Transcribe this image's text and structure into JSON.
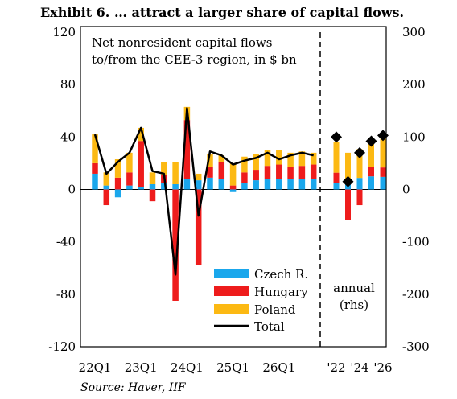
{
  "title": "Exhibit 6. … attract a larger share of capital flows.",
  "source": "Source: Haver, IIF",
  "colors": {
    "czech": "#1aa7ec",
    "hungary": "#ee1c1c",
    "poland": "#fcb913",
    "total": "#000000"
  },
  "chart_data": {
    "type": "bar",
    "annotation": "Net nonresident capital flows to/from the CEE-3 region, in $ bn",
    "annotation_lines": [
      "Net nonresident capital flows",
      "to/from the CEE-3 region, in $ bn"
    ],
    "right_panel_label_lines": [
      "annual",
      "(rhs)"
    ],
    "y_left": {
      "lim": [
        -120,
        120
      ],
      "ticks": [
        120,
        80,
        40,
        0,
        -40,
        -80,
        -120
      ]
    },
    "y_right": {
      "lim": [
        -300,
        300
      ],
      "ticks": [
        300,
        200,
        100,
        0,
        -100,
        -200,
        -300
      ]
    },
    "x_tick_labels": [
      "22Q1",
      "23Q1",
      "24Q1",
      "25Q1",
      "26Q1"
    ],
    "x_tick_label_quarter_index": [
      0,
      4,
      8,
      12,
      16
    ],
    "legend": [
      "Czech R.",
      "Hungary",
      "Poland",
      "Total"
    ],
    "legend_placement": "bottom-center",
    "quarterly": {
      "x": [
        "22Q1",
        "22Q2",
        "22Q3",
        "22Q4",
        "23Q1",
        "23Q2",
        "23Q3",
        "23Q4",
        "24Q1",
        "24Q2",
        "24Q3",
        "24Q4",
        "25Q1",
        "25Q2",
        "25Q3",
        "25Q4",
        "26Q1",
        "26Q2",
        "26Q3",
        "26Q4"
      ],
      "series": [
        {
          "name": "Czech R.",
          "values": [
            12,
            3,
            -6,
            3,
            2,
            4,
            5,
            4,
            8,
            7,
            9,
            8,
            -2,
            5,
            7,
            8,
            8,
            8,
            8,
            8
          ]
        },
        {
          "name": "Hungary",
          "values": [
            8,
            -12,
            9,
            10,
            35,
            -9,
            6,
            -85,
            45,
            -58,
            8,
            13,
            3,
            8,
            8,
            10,
            11,
            9,
            10,
            11
          ]
        },
        {
          "name": "Poland",
          "values": [
            22,
            10,
            14,
            15,
            10,
            9,
            10,
            17,
            10,
            5,
            10,
            5,
            17,
            12,
            12,
            12,
            11,
            11,
            11,
            9
          ]
        },
        {
          "name": "Total",
          "values": [
            42,
            12,
            21,
            28,
            47,
            14,
            12,
            -65,
            62,
            -20,
            29,
            26,
            19,
            22,
            24,
            28,
            23,
            26,
            28,
            26
          ]
        }
      ]
    },
    "annual": {
      "x": [
        "'22",
        "'23",
        "'24",
        "'25",
        "'26"
      ],
      "x_tick_labels": [
        "'22",
        "'24",
        "'26"
      ],
      "series": [
        {
          "name": "Czech R.",
          "values": [
            12,
            20,
            22,
            25,
            24
          ]
        },
        {
          "name": "Hungary",
          "values": [
            20,
            -58,
            -30,
            18,
            18
          ]
        },
        {
          "name": "Poland",
          "values": [
            58,
            50,
            55,
            56,
            55
          ]
        },
        {
          "name": "Total",
          "values": [
            100,
            15,
            70,
            92,
            103
          ]
        }
      ]
    }
  }
}
